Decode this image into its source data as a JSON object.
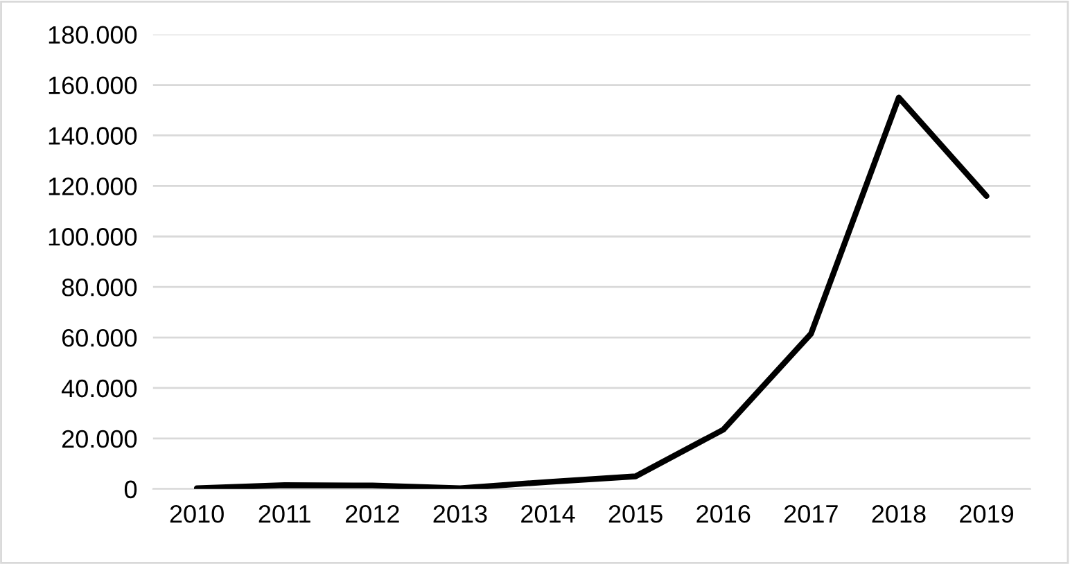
{
  "chart_data": {
    "type": "line",
    "categories": [
      "2010",
      "2011",
      "2012",
      "2013",
      "2014",
      "2015",
      "2016",
      "2017",
      "2018",
      "2019"
    ],
    "series": [
      {
        "color": "#000000",
        "values": [
          300,
          1500,
          1400,
          300,
          2800,
          5000,
          23500,
          61500,
          155000,
          116000
        ]
      }
    ],
    "ylim": [
      0,
      180000
    ],
    "yticks": [
      0,
      {
        "value": 20000,
        "label": "20.000"
      },
      {
        "value": 40000,
        "label": "40.000"
      },
      {
        "value": 60000,
        "label": "60.000"
      },
      {
        "value": 80000,
        "label": "80.000"
      },
      {
        "value": 100000,
        "label": "100.000"
      },
      {
        "value": 120000,
        "label": "120.000"
      },
      {
        "value": 140000,
        "label": "140.000"
      },
      {
        "value": 160000,
        "label": "160.000"
      },
      {
        "value": 180000,
        "label": "180.000"
      }
    ],
    "grid": "y",
    "marker": "none",
    "line_style": "solid"
  }
}
